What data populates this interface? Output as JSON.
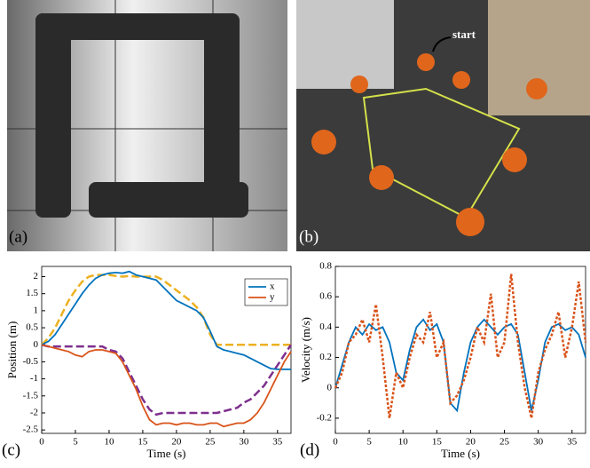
{
  "images": [
    {
      "label": "(a)"
    },
    {
      "label": "(b)",
      "annotation": "start"
    }
  ],
  "chart_data": [
    {
      "type": "line",
      "panel_label": "(c)",
      "xlabel": "Time (s)",
      "ylabel": "Position (m)",
      "xlim": [
        0,
        37
      ],
      "ylim": [
        -2.6,
        2.3
      ],
      "xticks": [
        0,
        5,
        10,
        15,
        20,
        25,
        30,
        35
      ],
      "yticks": [
        -2.5,
        -2,
        -1.5,
        -1,
        -0.5,
        0,
        0.5,
        1,
        1.5,
        2
      ],
      "legend": "upper right",
      "x": [
        0,
        1,
        2,
        3,
        4,
        5,
        6,
        7,
        8,
        9,
        10,
        11,
        12,
        13,
        14,
        15,
        16,
        17,
        18,
        19,
        20,
        21,
        22,
        23,
        24,
        25,
        26,
        27,
        28,
        29,
        30,
        31,
        32,
        33,
        34,
        35,
        36,
        37
      ],
      "series": [
        {
          "color": "#edb120",
          "dashed": true,
          "values": [
            0,
            0.2,
            0.5,
            0.9,
            1.3,
            1.6,
            1.85,
            2.0,
            2.05,
            2.05,
            2.05,
            2.02,
            2.0,
            2.02,
            2.0,
            2.0,
            2.0,
            2.0,
            1.9,
            1.75,
            1.6,
            1.45,
            1.3,
            1.1,
            0.8,
            0.3,
            0,
            0,
            0,
            0,
            0,
            0,
            0,
            0,
            0,
            0,
            0,
            0
          ]
        },
        {
          "color": "#7e2f8e",
          "dashed": true,
          "values": [
            0,
            -0.05,
            -0.05,
            -0.05,
            -0.05,
            -0.05,
            -0.05,
            -0.05,
            -0.05,
            -0.05,
            -0.15,
            -0.2,
            -0.4,
            -0.8,
            -1.2,
            -1.6,
            -1.9,
            -2.05,
            -2.0,
            -2.0,
            -2.0,
            -2.0,
            -2.0,
            -2.0,
            -2.0,
            -2.0,
            -2.0,
            -1.95,
            -1.9,
            -1.85,
            -1.7,
            -1.6,
            -1.4,
            -1.2,
            -0.9,
            -0.6,
            -0.3,
            0
          ]
        },
        {
          "name": "x",
          "color": "#0072bd",
          "values": [
            0,
            0.1,
            0.3,
            0.6,
            0.9,
            1.2,
            1.5,
            1.75,
            1.95,
            2.05,
            2.1,
            2.12,
            2.1,
            2.15,
            2.05,
            2.0,
            1.95,
            1.9,
            1.7,
            1.5,
            1.3,
            1.2,
            1.1,
            1.0,
            0.8,
            0.4,
            -0.05,
            -0.15,
            -0.2,
            -0.25,
            -0.3,
            -0.4,
            -0.5,
            -0.6,
            -0.7,
            -0.72,
            -0.72,
            -0.72
          ]
        },
        {
          "name": "y",
          "color": "#d95319",
          "values": [
            0,
            -0.05,
            -0.1,
            -0.15,
            -0.2,
            -0.3,
            -0.35,
            -0.2,
            -0.15,
            -0.15,
            -0.2,
            -0.25,
            -0.5,
            -0.9,
            -1.3,
            -1.8,
            -2.2,
            -2.35,
            -2.3,
            -2.3,
            -2.35,
            -2.3,
            -2.3,
            -2.35,
            -2.35,
            -2.3,
            -2.3,
            -2.4,
            -2.35,
            -2.3,
            -2.3,
            -2.2,
            -2.0,
            -1.7,
            -1.3,
            -0.9,
            -0.5,
            -0.2
          ]
        }
      ]
    },
    {
      "type": "line",
      "panel_label": "(d)",
      "xlabel": "Time (s)",
      "ylabel": "Velocity (m/s)",
      "xlim": [
        0,
        37
      ],
      "ylim": [
        -0.3,
        0.8
      ],
      "xticks": [
        0,
        5,
        10,
        15,
        20,
        25,
        30,
        35
      ],
      "yticks": [
        -0.2,
        0,
        0.2,
        0.4,
        0.6,
        0.8
      ],
      "x": [
        0,
        1,
        2,
        3,
        4,
        5,
        6,
        7,
        8,
        9,
        10,
        11,
        12,
        13,
        14,
        15,
        16,
        17,
        18,
        19,
        20,
        21,
        22,
        23,
        24,
        25,
        26,
        27,
        28,
        29,
        30,
        31,
        32,
        33,
        34,
        35,
        36,
        37
      ],
      "series": [
        {
          "color": "#0072bd",
          "values": [
            0,
            0.15,
            0.3,
            0.4,
            0.35,
            0.42,
            0.38,
            0.4,
            0.3,
            0.1,
            0.05,
            0.25,
            0.4,
            0.45,
            0.38,
            0.42,
            0.3,
            -0.1,
            -0.15,
            0.1,
            0.3,
            0.4,
            0.45,
            0.4,
            0.35,
            0.4,
            0.42,
            0.35,
            0.1,
            -0.15,
            0.05,
            0.3,
            0.4,
            0.42,
            0.38,
            0.4,
            0.35,
            0.2
          ]
        },
        {
          "color": "#d95319",
          "dashed": true,
          "values": [
            0,
            0.1,
            0.3,
            0.35,
            0.45,
            0.3,
            0.55,
            0.2,
            -0.2,
            0.1,
            0,
            0.2,
            0.35,
            0.3,
            0.5,
            0.2,
            0.3,
            -0.1,
            -0.05,
            0.05,
            0.2,
            0.4,
            0.3,
            0.62,
            0.2,
            0.3,
            0.75,
            0.3,
            0,
            -0.2,
            0.1,
            0.25,
            0.35,
            0.5,
            0.2,
            0.4,
            0.7,
            0.3
          ]
        }
      ]
    }
  ]
}
